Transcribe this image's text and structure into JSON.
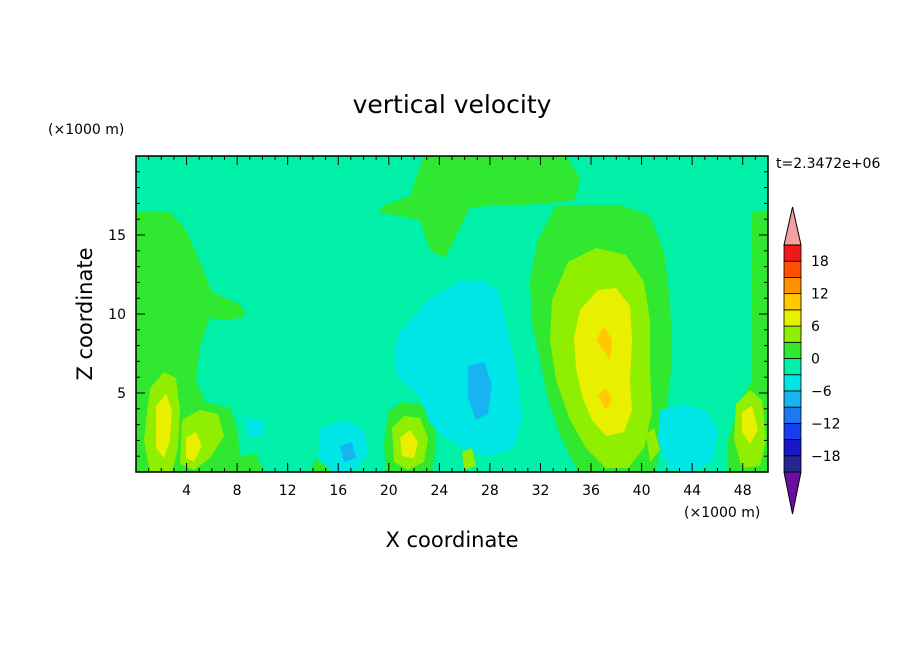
{
  "chart_data": {
    "type": "heatmap",
    "title": "vertical velocity",
    "xlabel": "X coordinate",
    "ylabel": "Z coordinate",
    "x_unit": "(×1000 m)",
    "y_unit": "(×1000 m)",
    "time_label": "t=2.3472e+06",
    "xlim": [
      0,
      50
    ],
    "ylim": [
      0,
      20
    ],
    "x_ticks": [
      4,
      8,
      12,
      16,
      20,
      24,
      28,
      32,
      36,
      40,
      44,
      48
    ],
    "y_ticks": [
      5,
      10,
      15
    ],
    "colorbar": {
      "levels": [
        -21,
        -18,
        -15,
        -12,
        -9,
        -6,
        -3,
        0,
        3,
        6,
        9,
        12,
        15,
        18,
        21
      ],
      "tick_labels": [
        18,
        12,
        6,
        0,
        -6,
        -12,
        -18
      ],
      "colors": [
        "#6a0fa0",
        "#262690",
        "#1818c8",
        "#1a3cf0",
        "#1e78f0",
        "#18b4f0",
        "#00e6e6",
        "#00f0a8",
        "#30e830",
        "#90ee00",
        "#e8f000",
        "#ffc800",
        "#ff9000",
        "#ff5000",
        "#f01818",
        "#f4a0a0"
      ],
      "extend": "both"
    },
    "features": [
      {
        "region": "left low-level updraft",
        "x": 2.2,
        "z": 3.0,
        "w": 7
      },
      {
        "region": "left low-level updraft",
        "x": 5.0,
        "z": 2.2,
        "w": 5
      },
      {
        "region": "updraft near x=22",
        "x": 21.8,
        "z": 1.8,
        "w": 7
      },
      {
        "region": "main updraft core",
        "x": 36.5,
        "z": 6.5,
        "w": 8
      },
      {
        "region": "right edge updraft",
        "x": 48.8,
        "z": 2.5,
        "w": 5
      },
      {
        "region": "central downdraft",
        "x": 27.0,
        "z": 5.0,
        "w": -5
      }
    ]
  }
}
